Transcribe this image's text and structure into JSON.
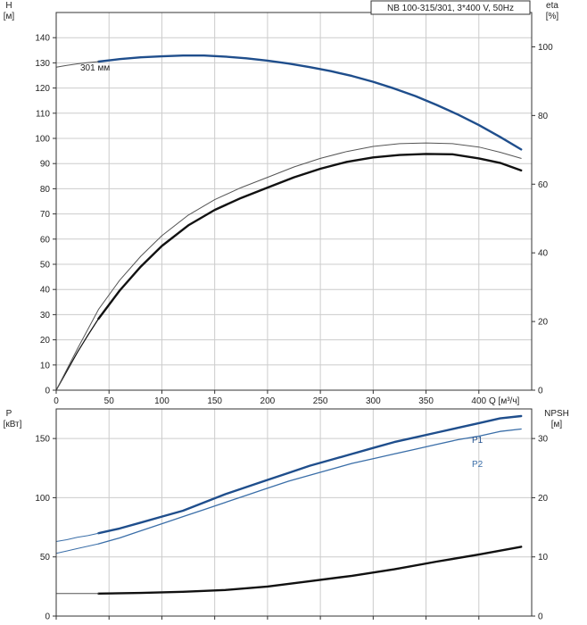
{
  "legend_box": "NB 100-315/301, 3*400 V, 50Hz",
  "colors": {
    "blue": "#1f4e8c",
    "blue_light": "#3a6ea8",
    "black": "#111111",
    "grid": "#cccccc",
    "axis": "#333333",
    "thin": "#555555"
  },
  "chart_data": [
    {
      "type": "line",
      "name": "head-efficiency",
      "xlabel": "Q [м³/ч]",
      "x_ticks": [
        "0",
        "50",
        "100",
        "150",
        "200",
        "250",
        "300",
        "350",
        "400"
      ],
      "xlim": [
        0,
        450
      ],
      "y_left": {
        "label_line1": "H",
        "label_line2": "[м]",
        "ylim": [
          0,
          150
        ],
        "ticks": [
          "0",
          "10",
          "20",
          "30",
          "40",
          "50",
          "60",
          "70",
          "80",
          "90",
          "100",
          "110",
          "120",
          "130",
          "140"
        ]
      },
      "y_right": {
        "label_line1": "eta",
        "label_line2": "[%]",
        "ylim": [
          0,
          110
        ],
        "ticks": [
          "0",
          "20",
          "40",
          "60",
          "80",
          "100"
        ]
      },
      "annotation": "301 мм",
      "series": [
        {
          "axis": "left",
          "style": "blue_thick",
          "x": [
            40,
            60,
            80,
            100,
            120,
            140,
            160,
            180,
            200,
            220,
            240,
            260,
            280,
            300,
            320,
            340,
            360,
            380,
            400,
            420,
            440
          ],
          "y": [
            130.5,
            131.5,
            132.2,
            132.6,
            132.9,
            132.9,
            132.5,
            131.8,
            130.9,
            129.7,
            128.3,
            126.7,
            124.8,
            122.5,
            119.8,
            116.8,
            113.3,
            109.5,
            105.3,
            100.6,
            95.6
          ]
        },
        {
          "axis": "left",
          "style": "thin",
          "x": [
            0,
            10,
            20,
            30,
            40
          ],
          "y": [
            128.3,
            129.0,
            129.6,
            130.1,
            130.5
          ]
        },
        {
          "axis": "right",
          "style": "black_thick",
          "x": [
            40,
            60,
            80,
            100,
            125,
            150,
            175,
            200,
            225,
            250,
            275,
            300,
            325,
            350,
            375,
            400,
            420,
            440
          ],
          "y": [
            20.8,
            29,
            36,
            42,
            48,
            52.5,
            56,
            59,
            62,
            64.5,
            66.5,
            67.8,
            68.5,
            68.8,
            68.7,
            67.5,
            66.2,
            64
          ]
        },
        {
          "axis": "right",
          "style": "black_thin",
          "x": [
            0,
            10,
            20,
            30,
            40
          ],
          "y": [
            0,
            5.5,
            11,
            16,
            20.8
          ]
        },
        {
          "axis": "right",
          "style": "thin",
          "x": [
            0,
            20,
            40,
            60,
            80,
            100,
            125,
            150,
            175,
            200,
            225,
            250,
            275,
            300,
            325,
            350,
            375,
            400,
            420,
            440
          ],
          "y": [
            0,
            12,
            23.5,
            32,
            39,
            45,
            51,
            55.5,
            59,
            62,
            65,
            67.5,
            69.5,
            71,
            71.8,
            72,
            71.8,
            70.8,
            69.3,
            67.5
          ]
        }
      ]
    },
    {
      "type": "line",
      "name": "power-npsh",
      "xlim": [
        0,
        450
      ],
      "y_left": {
        "label_line1": "P",
        "label_line2": "[кВт]",
        "ylim": [
          0,
          175
        ],
        "ticks": [
          "0",
          "50",
          "100",
          "150"
        ]
      },
      "y_right": {
        "label_line1": "NPSH",
        "label_line2": "[м]",
        "ylim": [
          0,
          35
        ],
        "ticks": [
          "0",
          "10",
          "20",
          "30"
        ]
      },
      "series": [
        {
          "name": "P1",
          "axis": "left",
          "style": "blue_thick",
          "x": [
            40,
            60,
            80,
            100,
            120,
            140,
            160,
            180,
            200,
            220,
            240,
            260,
            280,
            300,
            320,
            340,
            360,
            380,
            400,
            420,
            440
          ],
          "y": [
            70,
            74,
            79,
            84,
            89,
            96,
            103,
            109,
            115,
            121,
            127,
            132,
            137,
            142,
            147,
            151,
            155,
            159,
            163,
            167,
            169
          ]
        },
        {
          "name": "P2",
          "axis": "left",
          "style": "blue_thin",
          "x": [
            40,
            60,
            80,
            100,
            120,
            140,
            160,
            180,
            200,
            220,
            240,
            260,
            280,
            300,
            320,
            340,
            360,
            380,
            400,
            420,
            440
          ],
          "y": [
            61,
            66,
            72,
            78,
            84,
            90,
            96,
            102,
            108,
            114,
            119,
            124,
            129,
            133,
            137,
            141,
            145,
            149,
            152,
            156,
            158
          ]
        },
        {
          "axis": "left",
          "style": "blue_light_thin",
          "x": [
            0,
            10,
            20,
            30,
            40
          ],
          "y": [
            63,
            64.5,
            66.5,
            68,
            70
          ]
        },
        {
          "axis": "left",
          "style": "blue_light_thin",
          "x": [
            0,
            10,
            20,
            30,
            40
          ],
          "y": [
            53,
            55,
            57,
            59,
            61
          ]
        },
        {
          "axis": "right",
          "style": "black_thick",
          "x": [
            40,
            80,
            120,
            160,
            200,
            240,
            280,
            320,
            360,
            400,
            440
          ],
          "y": [
            3.8,
            3.9,
            4.1,
            4.4,
            5.0,
            5.9,
            6.8,
            7.9,
            9.2,
            10.4,
            11.7
          ]
        },
        {
          "axis": "right",
          "style": "thin",
          "x": [
            0,
            40
          ],
          "y": [
            3.8,
            3.8
          ]
        }
      ]
    }
  ]
}
